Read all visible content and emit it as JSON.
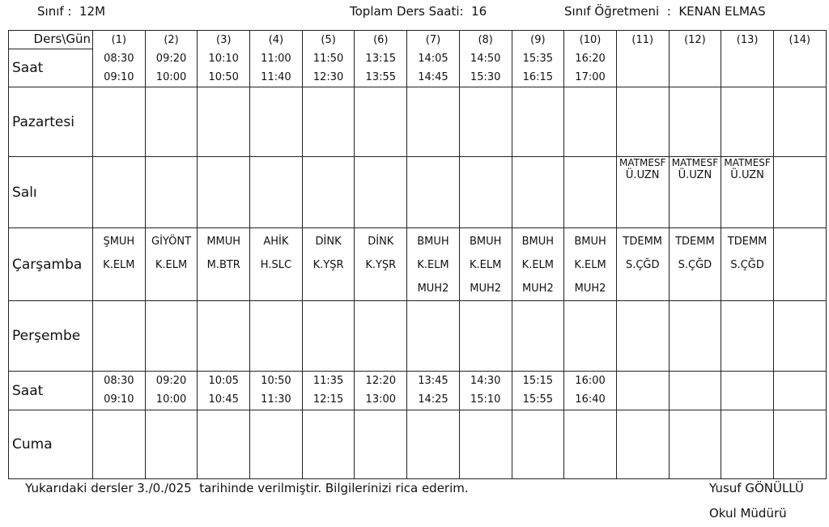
{
  "header": {
    "class_label": "Sınıf",
    "class_value": "12M",
    "total_label": "Toplam Ders Saati",
    "total_value": "16",
    "teacher_label": "Sınıf Öğretmeni",
    "teacher_value": "KENAN ELMAS"
  },
  "table": {
    "corner": "Ders\\Gün",
    "saat_label": "Saat",
    "columns": [
      {
        "num": "(1)",
        "start": "08:30",
        "end": "09:10"
      },
      {
        "num": "(2)",
        "start": "09:20",
        "end": "10:00"
      },
      {
        "num": "(3)",
        "start": "10:10",
        "end": "10:50"
      },
      {
        "num": "(4)",
        "start": "11:00",
        "end": "11:40"
      },
      {
        "num": "(5)",
        "start": "11:50",
        "end": "12:30"
      },
      {
        "num": "(6)",
        "start": "13:15",
        "end": "13:55"
      },
      {
        "num": "(7)",
        "start": "14:05",
        "end": "14:45"
      },
      {
        "num": "(8)",
        "start": "14:50",
        "end": "15:30"
      },
      {
        "num": "(9)",
        "start": "15:35",
        "end": "16:15"
      },
      {
        "num": "(10)",
        "start": "16:20",
        "end": "17:00"
      },
      {
        "num": "(11)",
        "start": "",
        "end": ""
      },
      {
        "num": "(12)",
        "start": "",
        "end": ""
      },
      {
        "num": "(13)",
        "start": "",
        "end": ""
      },
      {
        "num": "(14)",
        "start": "",
        "end": ""
      }
    ],
    "friday_times": [
      {
        "start": "08:30",
        "end": "09:10"
      },
      {
        "start": "09:20",
        "end": "10:00"
      },
      {
        "start": "10:05",
        "end": "10:45"
      },
      {
        "start": "10:50",
        "end": "11:30"
      },
      {
        "start": "11:35",
        "end": "12:15"
      },
      {
        "start": "12:20",
        "end": "13:00"
      },
      {
        "start": "13:45",
        "end": "14:25"
      },
      {
        "start": "14:30",
        "end": "15:10"
      },
      {
        "start": "15:15",
        "end": "15:55"
      },
      {
        "start": "16:00",
        "end": "16:40"
      },
      {
        "start": "",
        "end": ""
      },
      {
        "start": "",
        "end": ""
      },
      {
        "start": "",
        "end": ""
      },
      {
        "start": "",
        "end": ""
      }
    ],
    "days": {
      "pazartesi": {
        "label": "Pazartesi",
        "cells": [
          [],
          [],
          [],
          [],
          [],
          [],
          [],
          [],
          [],
          [],
          [],
          [],
          [],
          []
        ]
      },
      "sali": {
        "label": "Salı",
        "cells": [
          [],
          [],
          [],
          [],
          [],
          [],
          [],
          [],
          [],
          [],
          [
            "MATMESF",
            "Ü.UZN"
          ],
          [
            "MATMESF",
            "Ü.UZN"
          ],
          [
            "MATMESF",
            "Ü.UZN"
          ],
          []
        ]
      },
      "carsamba": {
        "label": "Çarşamba",
        "cells": [
          [
            "ŞMUH",
            "K.ELM"
          ],
          [
            "GİYÖNT",
            "K.ELM"
          ],
          [
            "MMUH",
            "M.BTR"
          ],
          [
            "AHİK",
            "H.SLC"
          ],
          [
            "DİNK",
            "K.YŞR"
          ],
          [
            "DİNK",
            "K.YŞR"
          ],
          [
            "BMUH",
            "K.ELM",
            "MUH2"
          ],
          [
            "BMUH",
            "K.ELM",
            "MUH2"
          ],
          [
            "BMUH",
            "K.ELM",
            "MUH2"
          ],
          [
            "BMUH",
            "K.ELM",
            "MUH2"
          ],
          [
            "TDEMM",
            "S.ÇĞD"
          ],
          [
            "TDEMM",
            "S.ÇĞD"
          ],
          [
            "TDEMM",
            "S.ÇĞD"
          ],
          []
        ]
      },
      "persembe": {
        "label": "Perşembe",
        "cells": [
          [],
          [],
          [],
          [],
          [],
          [],
          [],
          [],
          [],
          [],
          [],
          [],
          [],
          []
        ]
      },
      "cuma": {
        "label": "Cuma",
        "cells": [
          [],
          [],
          [],
          [],
          [],
          [],
          [],
          [],
          [],
          [],
          [],
          [],
          [],
          []
        ]
      }
    }
  },
  "footer": {
    "note": "Yukarıdaki dersler 3./0./025  tarihinde verilmiştir. Bilgilerinizi rica ederim.",
    "principal_name": "Yusuf GÖNÜLLÜ",
    "principal_title": "Okul Müdürü"
  }
}
